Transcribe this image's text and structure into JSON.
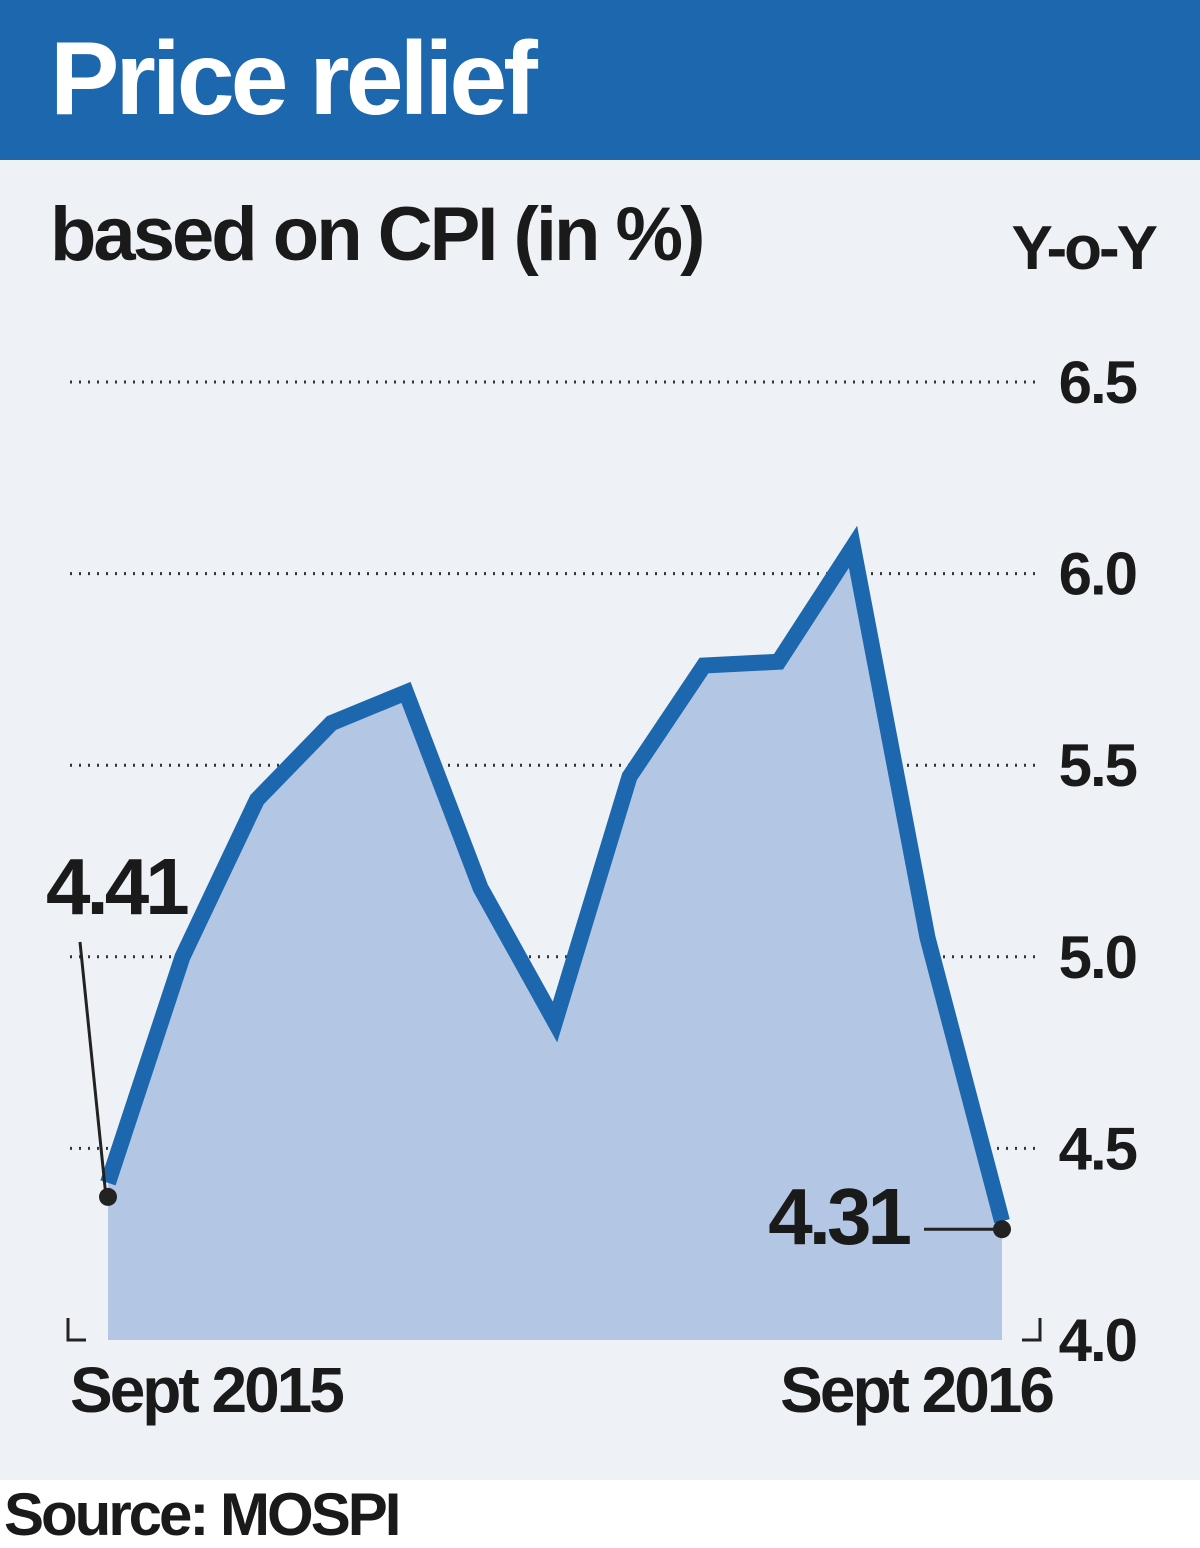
{
  "header": {
    "title": "Price relief"
  },
  "subtitle": "based on CPI (in %)",
  "unit": "Y-o-Y",
  "source": "Source: MOSPI",
  "colors": {
    "header": "#1c67ad",
    "line": "#1c67ad",
    "fill": "#b3c6e4",
    "panel": "#eef1f6"
  },
  "chart_data": {
    "type": "area",
    "x": [
      "Sept 2015",
      "",
      "",
      "",
      "",
      "",
      "",
      "",
      "",
      "",
      "",
      "",
      "Sept 2016"
    ],
    "values": [
      4.41,
      5.0,
      5.41,
      5.61,
      5.69,
      5.18,
      4.83,
      5.47,
      5.76,
      5.77,
      6.07,
      5.05,
      4.31
    ],
    "ylim": [
      4.0,
      6.5
    ],
    "yticks": [
      "6.5",
      "6.0",
      "5.5",
      "5.0",
      "4.5",
      "4.0"
    ],
    "x_labels": {
      "first": "Sept 2015",
      "last": "Sept 2016"
    },
    "annotations": {
      "first": "4.41",
      "last": "4.31"
    },
    "grid": "dotted horizontal"
  }
}
